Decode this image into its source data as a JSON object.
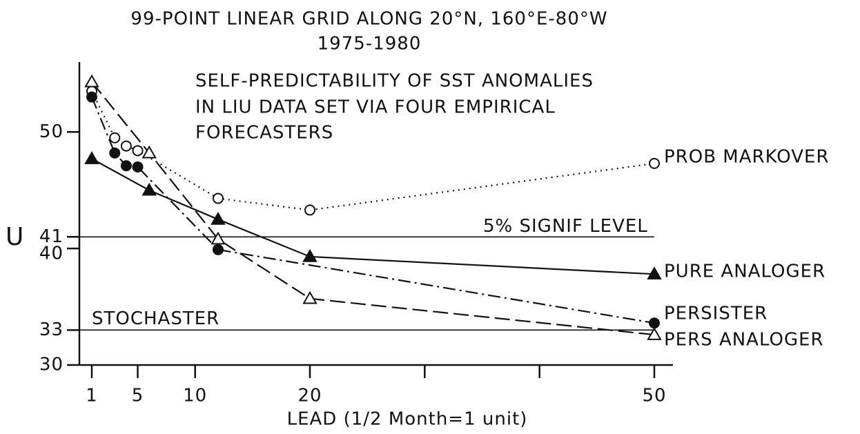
{
  "chart_data": {
    "type": "line",
    "title": "99-POINT LINEAR GRID ALONG 20°N, 160°E-80°W",
    "subtitle": "1975-1980",
    "annotation": [
      "SELF-PREDICTABILITY OF SST ANOMALIES",
      "IN LIU DATA SET VIA FOUR EMPIRICAL",
      "FORECASTERS"
    ],
    "x_label": "LEAD (1/2 Month=1 unit)",
    "y_label": "U",
    "xlim": [
      0,
      51.5
    ],
    "xticks": [
      1,
      5,
      10,
      20,
      50
    ],
    "minor_xticks": [
      30,
      40
    ],
    "ylim": [
      30,
      56
    ],
    "yticks": [
      30,
      33,
      40,
      41,
      50
    ],
    "reference_lines": [
      {
        "value": 41,
        "label": "5% SIGNIF LEVEL"
      },
      {
        "value": 33,
        "label": "STOCHASTER"
      }
    ],
    "series": [
      {
        "name": "PROB MARKOVER",
        "color": "#111111",
        "marker": "open-circle",
        "dash": "dotted",
        "x": [
          1,
          3,
          4,
          5,
          12,
          20,
          50
        ],
        "values": [
          53.5,
          49.5,
          48.8,
          48.4,
          44.3,
          43.3,
          47.3
        ]
      },
      {
        "name": "PURE ANALOGER",
        "color": "#111111",
        "marker": "filled-triangle",
        "dash": "solid",
        "x": [
          1,
          6,
          12,
          20,
          50
        ],
        "values": [
          47.7,
          45.0,
          42.5,
          39.3,
          37.8
        ]
      },
      {
        "name": "PERSISTER",
        "color": "#111111",
        "marker": "filled-circle",
        "dash": "dashdot",
        "x": [
          1,
          3,
          4,
          5,
          12,
          50
        ],
        "values": [
          53.0,
          48.2,
          47.1,
          47.0,
          39.9,
          33.6
        ]
      },
      {
        "name": "PERS ANALOGER",
        "color": "#111111",
        "marker": "open-triangle",
        "dash": "dashed",
        "x": [
          1,
          6,
          12,
          20,
          50
        ],
        "values": [
          54.3,
          48.2,
          40.8,
          35.7,
          32.6
        ]
      }
    ]
  }
}
